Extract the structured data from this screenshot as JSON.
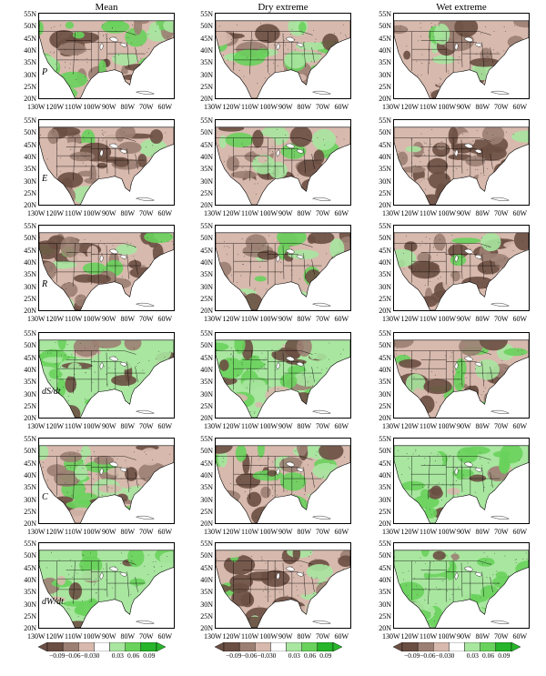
{
  "columns": [
    "Mean",
    "Dry extreme",
    "Wet extreme"
  ],
  "rows": [
    "P",
    "E",
    "R",
    "dS/dt",
    "C",
    "dW/dt"
  ],
  "lat_labels": [
    "55N",
    "50N",
    "45N",
    "40N",
    "35N",
    "30N",
    "25N",
    "20N"
  ],
  "lon_labels": [
    "130W",
    "120W",
    "110W",
    "100W",
    "90W",
    "80W",
    "70W",
    "60W"
  ],
  "colorbar_labels": [
    "−0.09",
    "−0.06",
    "−0.03",
    "0",
    "0.03",
    "0.06",
    "0.09"
  ],
  "colors": {
    "dark_brown": "#6b4f43",
    "brown": "#9c7f73",
    "light_brown": "#d7b9ad",
    "neutral": "#ffffff",
    "light_green": "#a9e6a0",
    "green": "#69d25c",
    "dark_green": "#27b52a",
    "ocean": "#ffffff",
    "outline": "#000000"
  },
  "patterns": [
    [
      0.35,
      0.4,
      0.2
    ],
    [
      0.1,
      0.35,
      0.1
    ],
    [
      0.3,
      0.4,
      0.15
    ],
    [
      0.7,
      0.6,
      0.3
    ],
    [
      0.45,
      0.45,
      0.75
    ],
    [
      0.7,
      0.3,
      0.85
    ]
  ]
}
